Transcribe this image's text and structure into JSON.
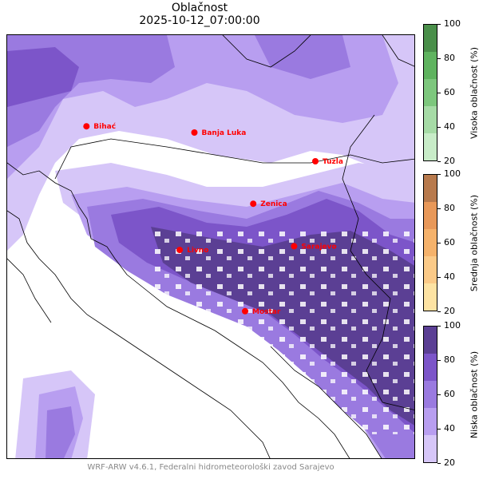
{
  "title": "Oblačnost",
  "timestamp": "2025-10-12_07:00:00",
  "credit": "WRF-ARW v4.6.1, Federalni hidrometeorološki zavod Sarajevo",
  "cities": [
    {
      "name": "Bihać",
      "lon": 15.87,
      "lat": 44.82
    },
    {
      "name": "Banja Luka",
      "lon": 17.19,
      "lat": 44.77
    },
    {
      "name": "Tuzla",
      "lon": 18.67,
      "lat": 44.54
    },
    {
      "name": "Zenica",
      "lon": 17.91,
      "lat": 44.2
    },
    {
      "name": "Livno",
      "lon": 17.01,
      "lat": 43.83
    },
    {
      "name": "Sarajevo",
      "lon": 18.41,
      "lat": 43.86
    },
    {
      "name": "Mostar",
      "lon": 17.81,
      "lat": 43.34
    }
  ],
  "colorbars": [
    {
      "label": "Visoka oblačnost (%)",
      "ticks": [
        "100",
        "80",
        "60",
        "40",
        "20"
      ],
      "colors": [
        "#4a8f4a",
        "#5fb35f",
        "#7dc77d",
        "#a6dba6",
        "#c8ecc8"
      ]
    },
    {
      "label": "Srednja oblačnost (%)",
      "ticks": [
        "100",
        "80",
        "60",
        "40",
        "20"
      ],
      "colors": [
        "#b87a4d",
        "#e89859",
        "#f5b26b",
        "#fbca88",
        "#fde3a3"
      ]
    },
    {
      "label": "Niska oblačnost (%)",
      "ticks": [
        "100",
        "80",
        "60",
        "40",
        "20"
      ],
      "colors": [
        "#5b3f94",
        "#7c55c9",
        "#9a7ae0",
        "#b89ef0",
        "#d6c6f8"
      ]
    }
  ]
}
